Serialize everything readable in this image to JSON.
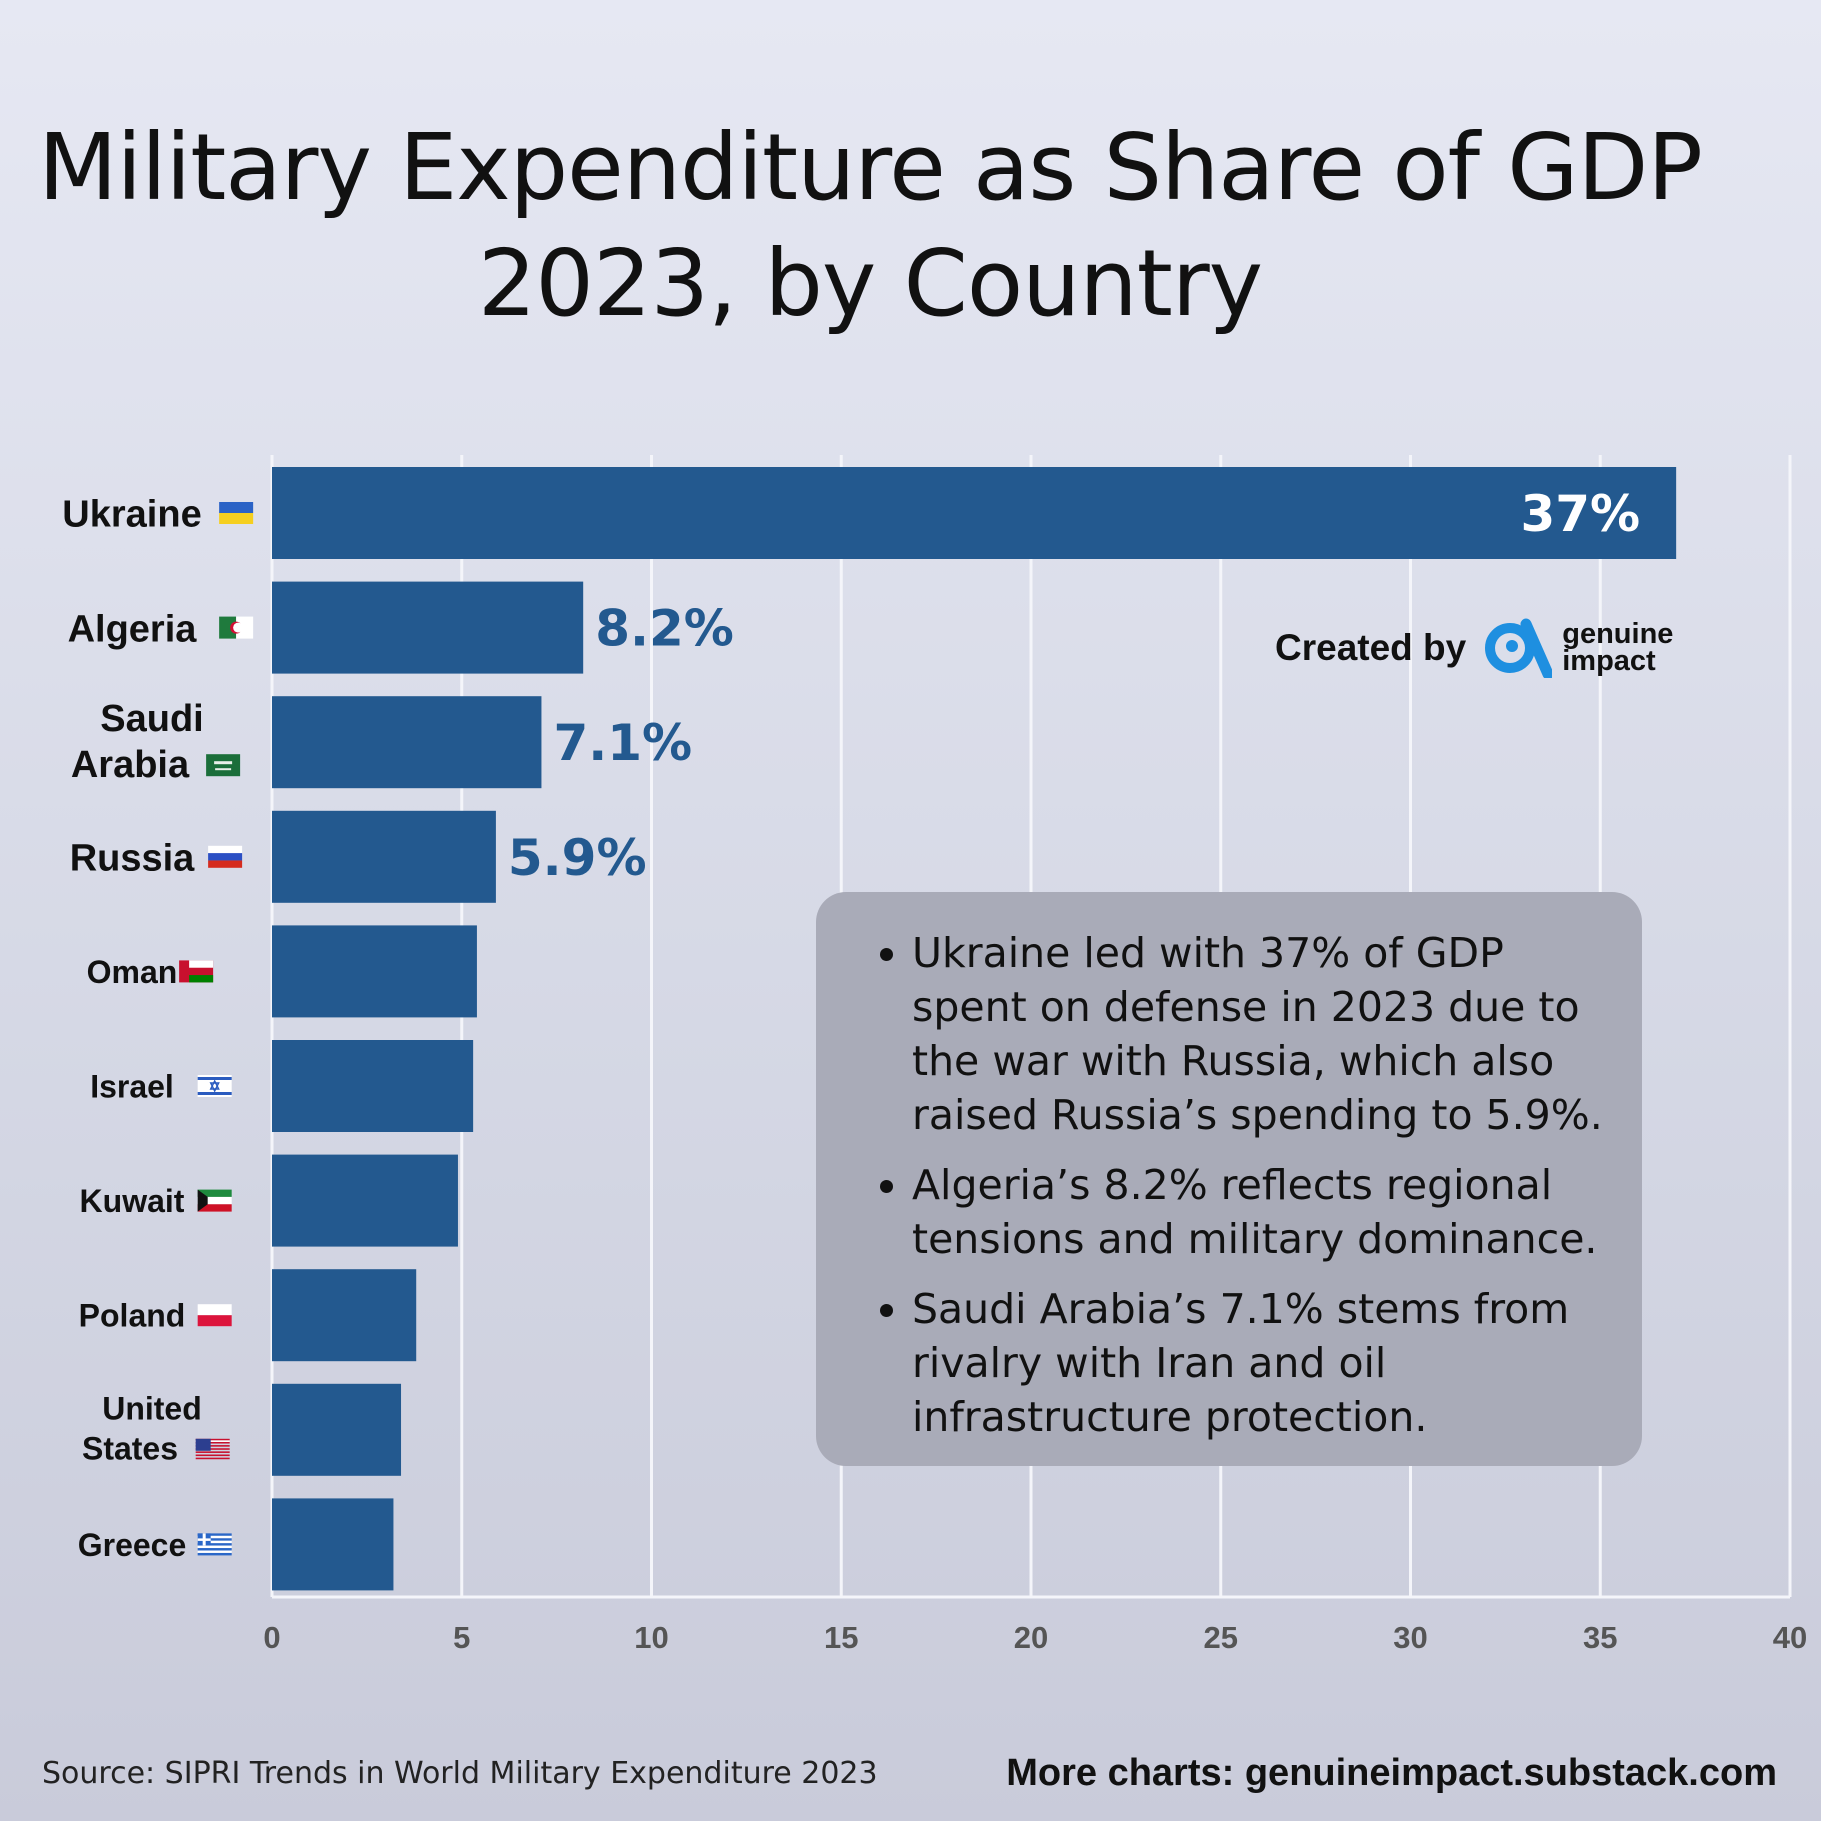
{
  "header": {
    "title_line1": "Military Expenditure as Share of GDP",
    "title_line2": "2023, by Country"
  },
  "chart_data": {
    "type": "bar",
    "orientation": "horizontal",
    "title": "Military Expenditure as Share of GDP 2023, by Country",
    "xlabel": "",
    "ylabel": "",
    "xlim": [
      0,
      40
    ],
    "xticks": [
      0,
      5,
      10,
      15,
      20,
      25,
      30,
      35,
      40
    ],
    "grid": true,
    "categories": [
      "Ukraine",
      "Algeria",
      "Saudi Arabia",
      "Russia",
      "Oman",
      "Israel",
      "Kuwait",
      "Poland",
      "United States",
      "Greece"
    ],
    "category_lines": [
      [
        "Ukraine"
      ],
      [
        "Algeria"
      ],
      [
        "Saudi",
        "Arabia"
      ],
      [
        "Russia"
      ],
      [
        "Oman"
      ],
      [
        "Israel"
      ],
      [
        "Kuwait"
      ],
      [
        "Poland"
      ],
      [
        "United",
        "States"
      ],
      [
        "Greece"
      ]
    ],
    "flags": [
      "ua",
      "dz",
      "sa",
      "ru",
      "om",
      "il",
      "kw",
      "pl",
      "us",
      "gr"
    ],
    "values": [
      37,
      8.2,
      7.1,
      5.9,
      5.4,
      5.3,
      4.9,
      3.8,
      3.4,
      3.2
    ],
    "data_labels": [
      "37%",
      "8.2%",
      "7.1%",
      "5.9%",
      null,
      null,
      null,
      null,
      null,
      null
    ],
    "bar_color": "#23598f",
    "label_color_inside": "#ffffff",
    "label_color_outside": "#23598f"
  },
  "notes": {
    "items": [
      " Ukraine led with 37% of GDP spent on defense in 2023 due to the war with Russia, which also raised Russia’s spending to 5.9%.",
      "Algeria’s 8.2% reflects regional tensions and military dominance.",
      "Saudi Arabia’s 7.1% stems from rivalry with Iran and oil infrastructure protection."
    ]
  },
  "branding": {
    "created_by": "Created by",
    "logo_line1": "genuine",
    "logo_line2": "impact",
    "logo_icon": "genuine-impact-logo-icon",
    "logo_color": "#1e8fe0"
  },
  "footer": {
    "source": "Source: SIPRI Trends in World Military Expenditure 2023",
    "more": "More charts: genuineimpact.substack.com"
  }
}
